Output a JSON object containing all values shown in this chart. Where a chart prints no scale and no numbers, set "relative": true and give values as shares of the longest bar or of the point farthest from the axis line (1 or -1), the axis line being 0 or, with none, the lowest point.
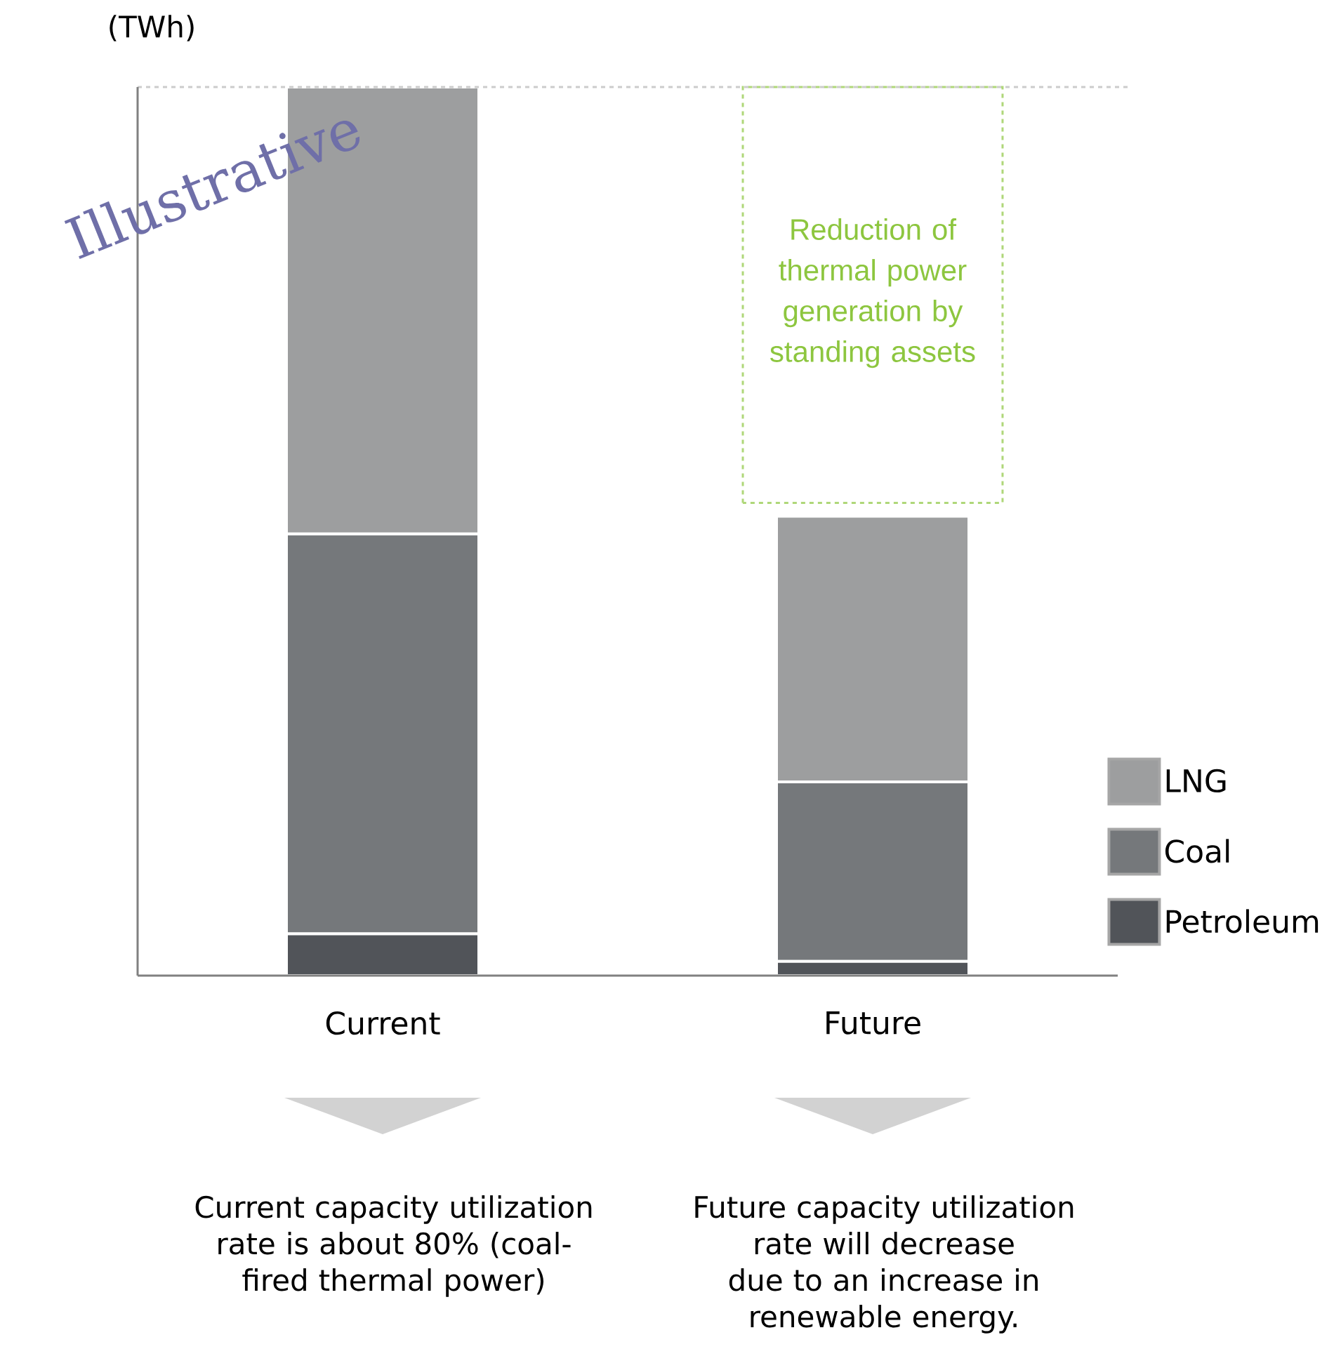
{
  "chart_data": {
    "type": "bar",
    "stacked": true,
    "relative": true,
    "ylabel": "(TWh)",
    "categories": [
      "Current",
      "Future"
    ],
    "series": [
      {
        "name": "Petroleum",
        "color": "#515459",
        "values": [
          0.047,
          0.016
        ]
      },
      {
        "name": "Coal",
        "color": "#75787b",
        "values": [
          0.45,
          0.202
        ]
      },
      {
        "name": "LNG",
        "color": "#9d9e9f",
        "values": [
          0.503,
          0.299
        ]
      }
    ],
    "legend": "right",
    "ref_lines": [
      {
        "axis": "y",
        "value": 1,
        "color": "#cccccc",
        "line_style": "dashed"
      }
    ],
    "annotations": [
      "Illustrative",
      "Reduction of thermal power generation by standing assets",
      "Current capacity utilization rate is about 80% (coal-fired thermal power)",
      "Future capacity utilization rate will decrease due to an increase in renewable energy."
    ]
  }
}
